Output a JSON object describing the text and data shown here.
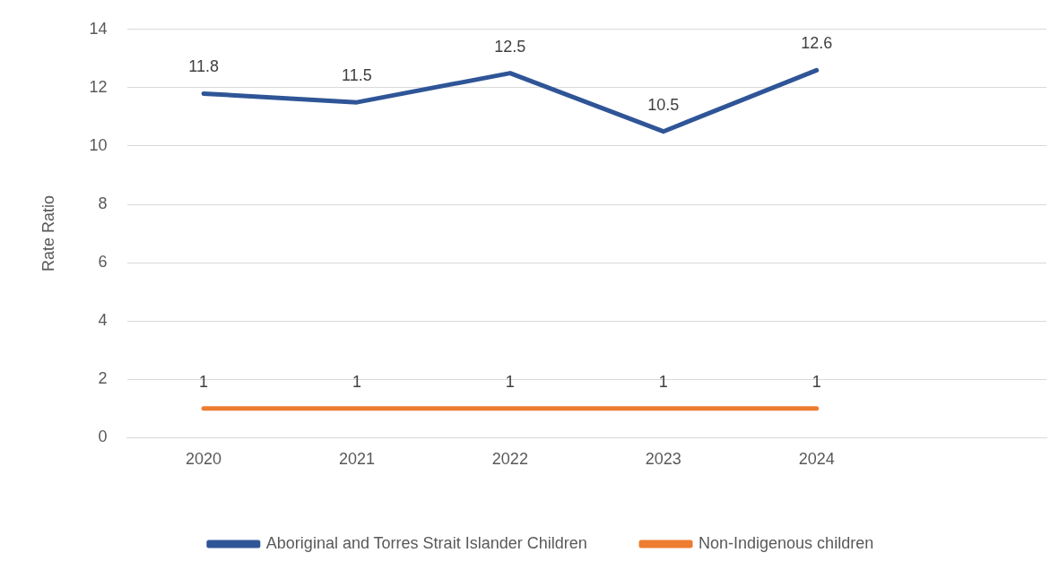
{
  "chart_data": {
    "type": "line",
    "ylabel": "Rate Ratio",
    "categories": [
      "2020",
      "2021",
      "2022",
      "2023",
      "2024",
      null
    ],
    "series": [
      {
        "name": "Aboriginal and Torres Strait Islander Children",
        "color": "#2f5597",
        "values": [
          11.8,
          11.5,
          12.5,
          10.5,
          12.6,
          null
        ]
      },
      {
        "name": "Non-Indigenous children",
        "color": "#ed7d31",
        "values": [
          1,
          1,
          1,
          1,
          1,
          null
        ]
      }
    ],
    "ylim": [
      0,
      14
    ],
    "yticks": [
      0,
      2,
      4,
      6,
      8,
      10,
      12,
      14
    ],
    "grid": "y",
    "legend": "bottom",
    "data_labels": true,
    "marker": "none",
    "line_style": "solid"
  }
}
